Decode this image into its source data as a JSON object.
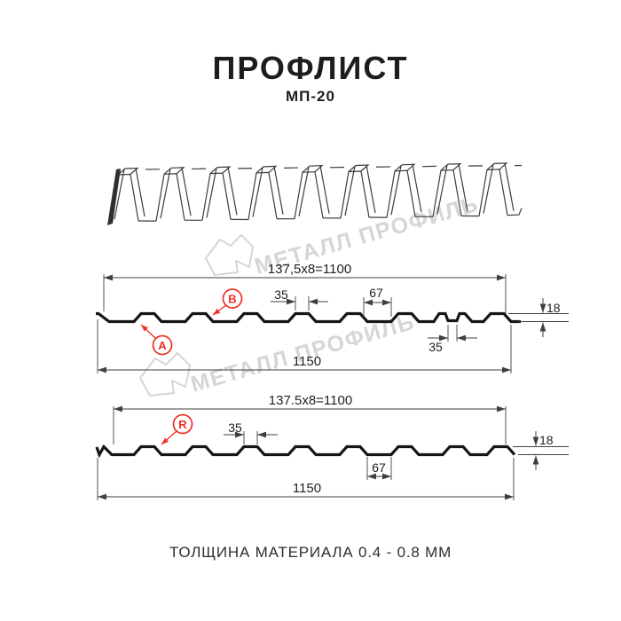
{
  "header": {
    "title": "ПРОФЛИСТ",
    "subtitle": "МП-20"
  },
  "watermark": {
    "text": "МЕТАЛЛ ПРОФИЛЬ"
  },
  "section1": {
    "dim_module": "137,5x8=1100",
    "dim_crest": "35",
    "dim_valley": "67",
    "dim_height": "18",
    "dim_groove": "35",
    "dim_width": "1150",
    "label_a": "A",
    "label_b": "B"
  },
  "section2": {
    "dim_module": "137.5x8=1100",
    "dim_crest": "35",
    "dim_valley": "67",
    "dim_height": "18",
    "dim_width": "1150",
    "label_r": "R"
  },
  "footer": {
    "text": "ТОЛЩИНА МАТЕРИАЛА 0.4 - 0.8 ММ"
  },
  "colors": {
    "accent_red": "#ee2e24",
    "line_ink": "#161616",
    "dim_gray": "#3f3f3f",
    "watermark_gray": "#d6d6d6"
  }
}
